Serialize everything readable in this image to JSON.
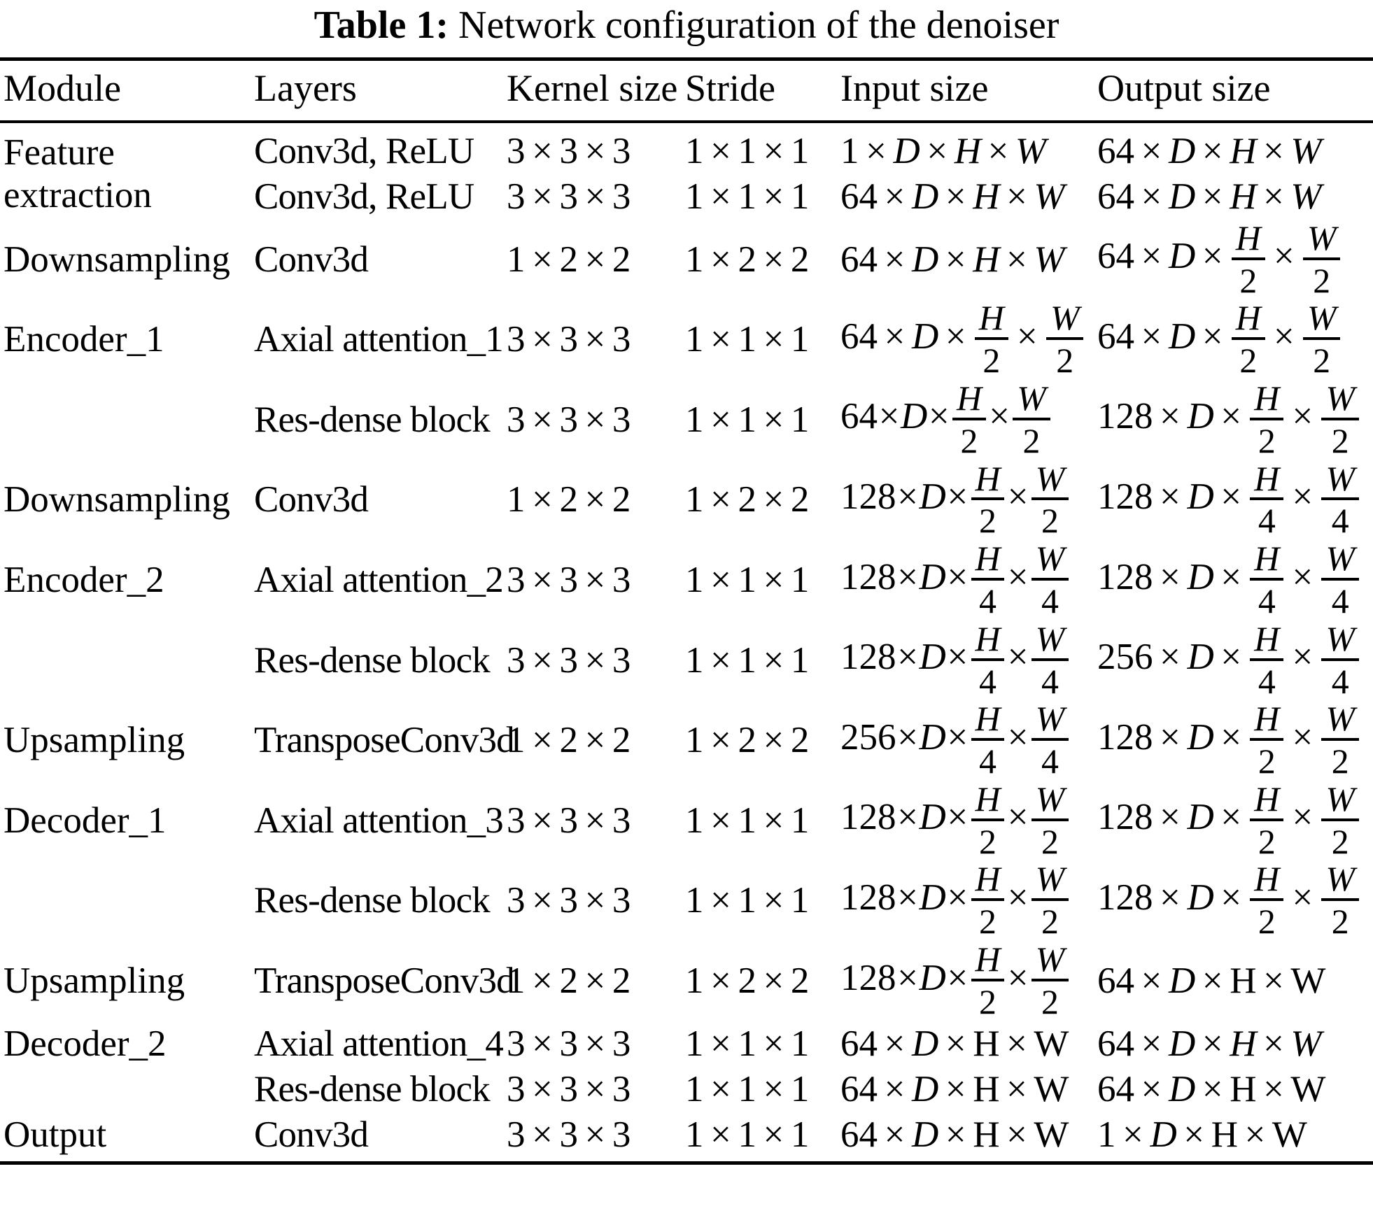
{
  "title": {
    "label": "Table 1:",
    "text": "Network configuration of the denoiser"
  },
  "columns": [
    "Module",
    "Layers",
    "Kernel size",
    "Stride",
    "Input size",
    "Output size"
  ],
  "rows": [
    {
      "module": "Feature extraction",
      "module_rowspan": 2,
      "layers": "Conv3d, ReLU",
      "kernel": "3 3 3",
      "stride": "1 1 1",
      "input": "1 D H W",
      "output": "64 D H W"
    },
    {
      "module_skip": true,
      "layers": "Conv3d, ReLU",
      "kernel": "3 3 3",
      "stride": "1 1 1",
      "input": "64 D H W",
      "output": "64 D H W"
    },
    {
      "module": "Downsampling",
      "layers": "Conv3d",
      "kernel": "1 2 2",
      "stride": "1 2 2",
      "input": "64 D H W",
      "output": "64 D H/2 W/2"
    },
    {
      "module": "Encoder_1",
      "layers": "Axial attention_1",
      "kernel": "3 3 3",
      "stride": "1 1 1",
      "input": "64 D H/2 W/2",
      "output": "64 D H/2 W/2"
    },
    {
      "module": "",
      "layers": "Res-dense block",
      "kernel": "3 3 3",
      "stride": "1 1 1",
      "input": "64 D H/2 W/2",
      "input_tight": true,
      "output": "128 D H/2 W/2"
    },
    {
      "module": "Downsampling",
      "layers": "Conv3d",
      "kernel": "1 2 2",
      "stride": "1 2 2",
      "input": "128 D H/2 W/2",
      "input_tight": true,
      "output": "128 D H/4 W/4"
    },
    {
      "module": "Encoder_2",
      "layers": "Axial attention_2",
      "kernel": "3 3 3",
      "stride": "1 1 1",
      "input": "128 D H/4 W/4",
      "input_tight": true,
      "output": "128 D H/4 W/4"
    },
    {
      "module": "",
      "layers": "Res-dense block",
      "kernel": "3 3 3",
      "stride": "1 1 1",
      "input": "128 D H/4 W/4",
      "input_tight": true,
      "output": "256 D H/4 W/4"
    },
    {
      "module": "Upsampling",
      "layers": "TransposeConv3d",
      "kernel": "1 2 2",
      "stride": "1 2 2",
      "input": "256 D H/4 W/4",
      "input_tight": true,
      "output": "128 D H/2 W/2"
    },
    {
      "module": "Decoder_1",
      "layers": "Axial attention_3",
      "kernel": "3 3 3",
      "stride": "1 1 1",
      "input": "128 D H/2 W/2",
      "input_tight": true,
      "output": "128 D H/2 W/2"
    },
    {
      "module": "",
      "layers": "Res-dense block",
      "kernel": "3 3 3",
      "stride": "1 1 1",
      "input": "128 D H/2 W/2",
      "input_tight": true,
      "output": "128 D H/2 W/2"
    },
    {
      "module": "Upsampling",
      "layers": "TransposeConv3d",
      "kernel": "1 2 2",
      "stride": "1 2 2",
      "input": "128 D H/2 W/2",
      "input_tight": true,
      "output": "64 D !H !W"
    },
    {
      "module": "Decoder_2",
      "layers": "Axial attention_4",
      "kernel": "3 3 3",
      "stride": "1 1 1",
      "input": "64 D !H !W",
      "output": "64 D H W"
    },
    {
      "module": "",
      "layers": "Res-dense block",
      "kernel": "3 3 3",
      "stride": "1 1 1",
      "input": "64 D !H !W",
      "output": "64 D !H !W"
    },
    {
      "module": "Output",
      "layers": "Conv3d",
      "kernel": "3 3 3",
      "stride": "1 1 1",
      "input": "64 D !H !W",
      "output": "1 D !H !W"
    }
  ]
}
